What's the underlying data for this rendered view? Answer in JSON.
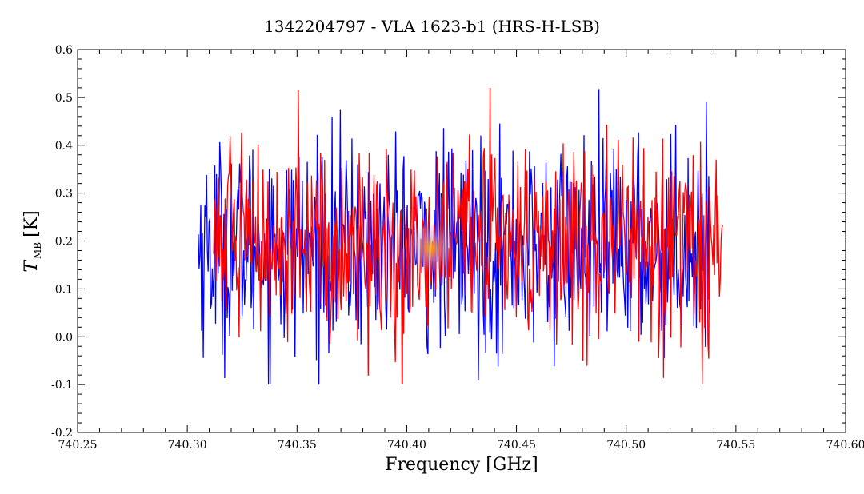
{
  "chart_data": {
    "type": "line",
    "title": "1342204797 - VLA 1623-b1 (HRS-H-LSB)",
    "xlabel": "Frequency [GHz]",
    "ylabel_main": "T",
    "ylabel_sub": "MB",
    "ylabel_unit": "[K]",
    "xlim": [
      740.25,
      740.6
    ],
    "ylim": [
      -0.2,
      0.6
    ],
    "xticks": [
      "740.25",
      "740.30",
      "740.35",
      "740.40",
      "740.45",
      "740.50",
      "740.55",
      "740.60"
    ],
    "yticks": [
      "-0.2",
      "-0.1",
      "0.0",
      "0.1",
      "0.2",
      "0.3",
      "0.4",
      "0.5",
      "0.6"
    ],
    "grid": false,
    "series": [
      {
        "color": "#0000ff",
        "x_start": 740.305,
        "x_end": 740.538,
        "points": 620,
        "mean": 0.19,
        "min": -0.1,
        "max": 0.53
      },
      {
        "color": "#ff0000",
        "x_start": 740.312,
        "x_end": 740.544,
        "points": 620,
        "mean": 0.2,
        "min": -0.1,
        "max": 0.52
      }
    ]
  }
}
